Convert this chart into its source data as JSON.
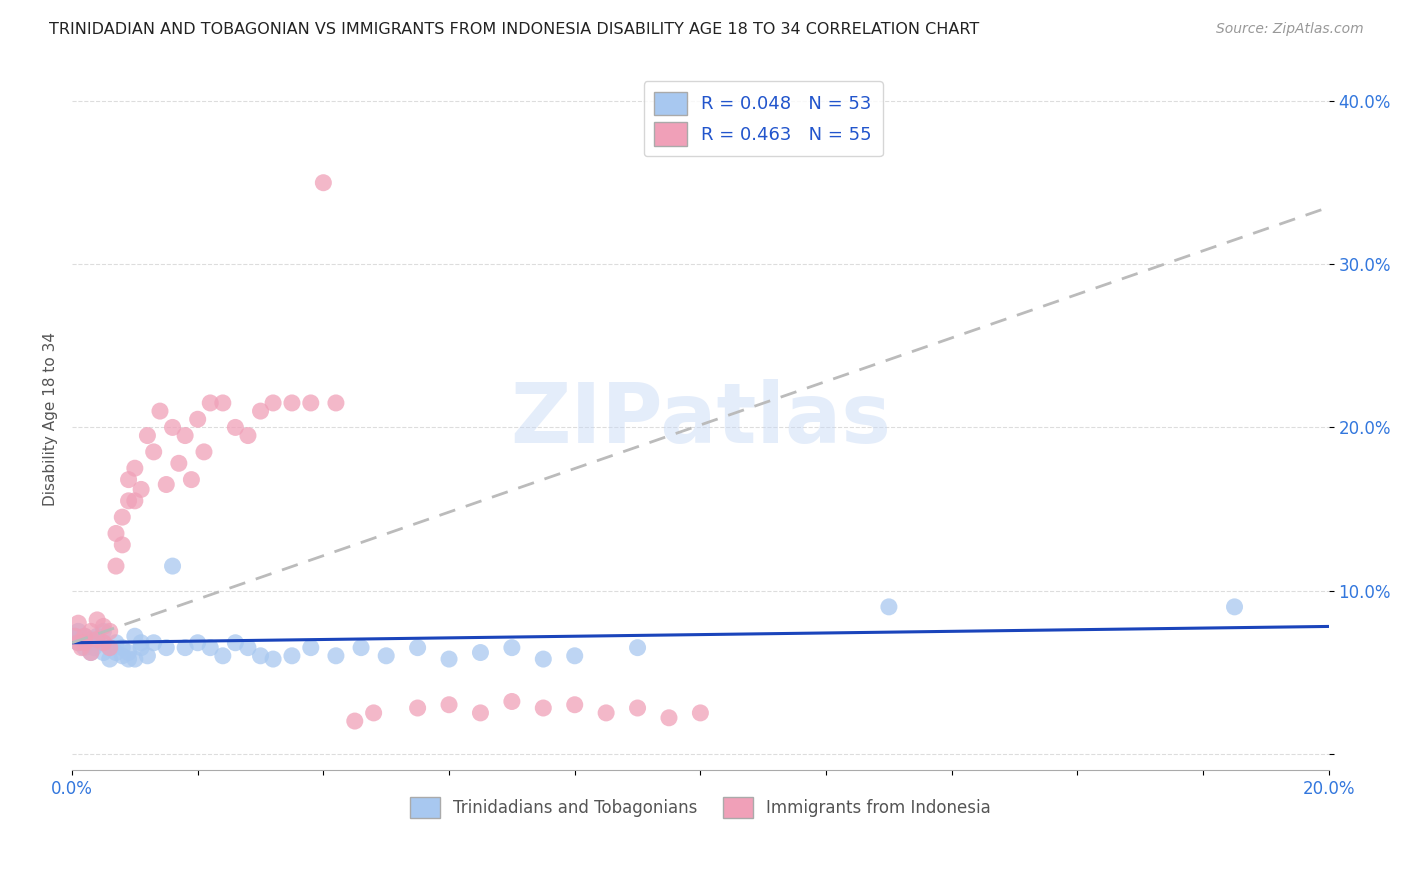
{
  "title": "TRINIDADIAN AND TOBAGONIAN VS IMMIGRANTS FROM INDONESIA DISABILITY AGE 18 TO 34 CORRELATION CHART",
  "source": "Source: ZipAtlas.com",
  "ylabel": "Disability Age 18 to 34",
  "xlabel": "",
  "xlim": [
    0.0,
    0.2
  ],
  "ylim": [
    -0.01,
    0.42
  ],
  "yticks": [
    0.0,
    0.1,
    0.2,
    0.3,
    0.4
  ],
  "ytick_labels": [
    "",
    "10.0%",
    "20.0%",
    "30.0%",
    "40.0%"
  ],
  "xticks": [
    0.0,
    0.02,
    0.04,
    0.06,
    0.08,
    0.1,
    0.12,
    0.14,
    0.16,
    0.18,
    0.2
  ],
  "xtick_labels": [
    "0.0%",
    "",
    "",
    "",
    "",
    "",
    "",
    "",
    "",
    "",
    "20.0%"
  ],
  "series1_color": "#a8c8f0",
  "series2_color": "#f0a0b8",
  "trendline1_color": "#1a44bb",
  "trendline2_color": "#cc3366",
  "R1": 0.048,
  "N1": 53,
  "R2": 0.463,
  "N2": 55,
  "legend_label1": "Trinidadians and Tobagonians",
  "legend_label2": "Immigrants from Indonesia",
  "watermark": "ZIPatlas",
  "series1_x": [
    0.0005,
    0.001,
    0.001,
    0.0015,
    0.002,
    0.002,
    0.0025,
    0.003,
    0.003,
    0.0035,
    0.004,
    0.004,
    0.005,
    0.005,
    0.005,
    0.006,
    0.006,
    0.007,
    0.007,
    0.008,
    0.008,
    0.009,
    0.009,
    0.01,
    0.01,
    0.011,
    0.011,
    0.012,
    0.013,
    0.015,
    0.016,
    0.018,
    0.02,
    0.022,
    0.024,
    0.026,
    0.028,
    0.03,
    0.032,
    0.035,
    0.038,
    0.042,
    0.046,
    0.05,
    0.055,
    0.06,
    0.065,
    0.07,
    0.075,
    0.08,
    0.09,
    0.13,
    0.185
  ],
  "series1_y": [
    0.072,
    0.068,
    0.075,
    0.07,
    0.072,
    0.065,
    0.068,
    0.062,
    0.07,
    0.065,
    0.068,
    0.072,
    0.062,
    0.068,
    0.075,
    0.058,
    0.065,
    0.062,
    0.068,
    0.06,
    0.065,
    0.058,
    0.062,
    0.058,
    0.072,
    0.065,
    0.068,
    0.06,
    0.068,
    0.065,
    0.115,
    0.065,
    0.068,
    0.065,
    0.06,
    0.068,
    0.065,
    0.06,
    0.058,
    0.06,
    0.065,
    0.06,
    0.065,
    0.06,
    0.065,
    0.058,
    0.062,
    0.065,
    0.058,
    0.06,
    0.065,
    0.09,
    0.09
  ],
  "series2_x": [
    0.0005,
    0.001,
    0.001,
    0.0015,
    0.002,
    0.002,
    0.003,
    0.003,
    0.004,
    0.004,
    0.005,
    0.005,
    0.006,
    0.006,
    0.007,
    0.007,
    0.008,
    0.008,
    0.009,
    0.009,
    0.01,
    0.01,
    0.011,
    0.012,
    0.013,
    0.014,
    0.015,
    0.016,
    0.017,
    0.018,
    0.019,
    0.02,
    0.021,
    0.022,
    0.024,
    0.026,
    0.028,
    0.03,
    0.032,
    0.035,
    0.038,
    0.04,
    0.042,
    0.045,
    0.048,
    0.055,
    0.06,
    0.065,
    0.07,
    0.075,
    0.08,
    0.085,
    0.09,
    0.095,
    0.1
  ],
  "series2_y": [
    0.072,
    0.068,
    0.08,
    0.065,
    0.072,
    0.068,
    0.062,
    0.075,
    0.07,
    0.082,
    0.068,
    0.078,
    0.065,
    0.075,
    0.115,
    0.135,
    0.128,
    0.145,
    0.155,
    0.168,
    0.155,
    0.175,
    0.162,
    0.195,
    0.185,
    0.21,
    0.165,
    0.2,
    0.178,
    0.195,
    0.168,
    0.205,
    0.185,
    0.215,
    0.215,
    0.2,
    0.195,
    0.21,
    0.215,
    0.215,
    0.215,
    0.35,
    0.215,
    0.02,
    0.025,
    0.028,
    0.03,
    0.025,
    0.032,
    0.028,
    0.03,
    0.025,
    0.028,
    0.022,
    0.025
  ],
  "trendline1_x": [
    0.0,
    0.2
  ],
  "trendline1_y": [
    0.068,
    0.078
  ],
  "trendline2_x": [
    0.0,
    0.2
  ],
  "trendline2_y": [
    0.068,
    0.335
  ]
}
